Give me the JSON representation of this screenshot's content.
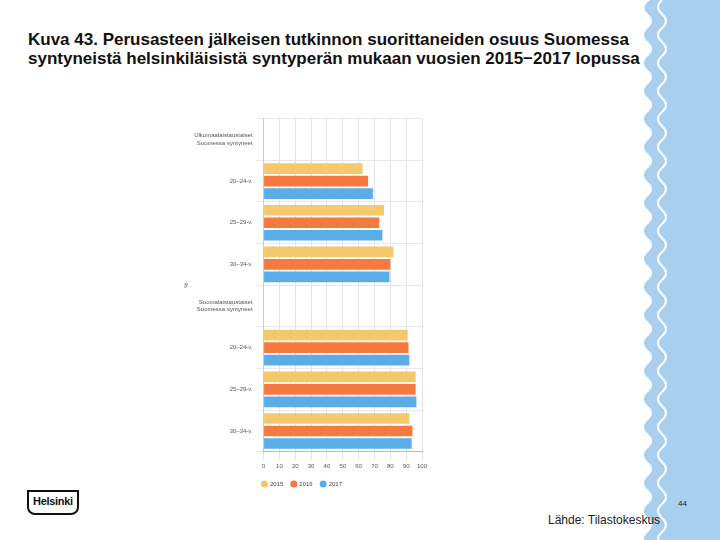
{
  "chart_data": {
    "type": "bar",
    "orientation": "horizontal",
    "title": "Kuva 43. Perusasteen jälkeisen tutkinnon suorittaneiden osuus Suomessa syntyneistä helsinkiläisistä syntyperän mukaan vuosien 2015−2017 lopussa",
    "ylabel": "%",
    "categories": [
      [
        "Ulkomaalaistaustaiset",
        "Suomessa syntyneet"
      ],
      "20–24-v.",
      "25–29-v.",
      "30–34-v.",
      [
        "Suomalaistaustaiset",
        "Suomessa syntyneet"
      ],
      "20–24-v.",
      "25–29-v.",
      "30–34-v."
    ],
    "series": [
      {
        "name": "2015",
        "color": "#f5c96b",
        "values": [
          null,
          62.5,
          76,
          82,
          null,
          91,
          96,
          92
        ]
      },
      {
        "name": "2016",
        "color": "#f47a3f",
        "values": [
          null,
          66,
          73,
          80,
          null,
          91.5,
          96,
          94
        ]
      },
      {
        "name": "2017",
        "color": "#5aaee8",
        "values": [
          null,
          69,
          75,
          79.5,
          null,
          92,
          96.5,
          93.5
        ]
      }
    ],
    "xlim": [
      0,
      100
    ],
    "xticks": [
      0,
      10,
      20,
      30,
      40,
      50,
      60,
      70,
      80,
      90,
      100
    ],
    "grid": true,
    "legend": "bottom"
  },
  "slide": {
    "page_number": "44",
    "source": "Lähde: Tilastokeskus",
    "logo": "Helsinki"
  }
}
